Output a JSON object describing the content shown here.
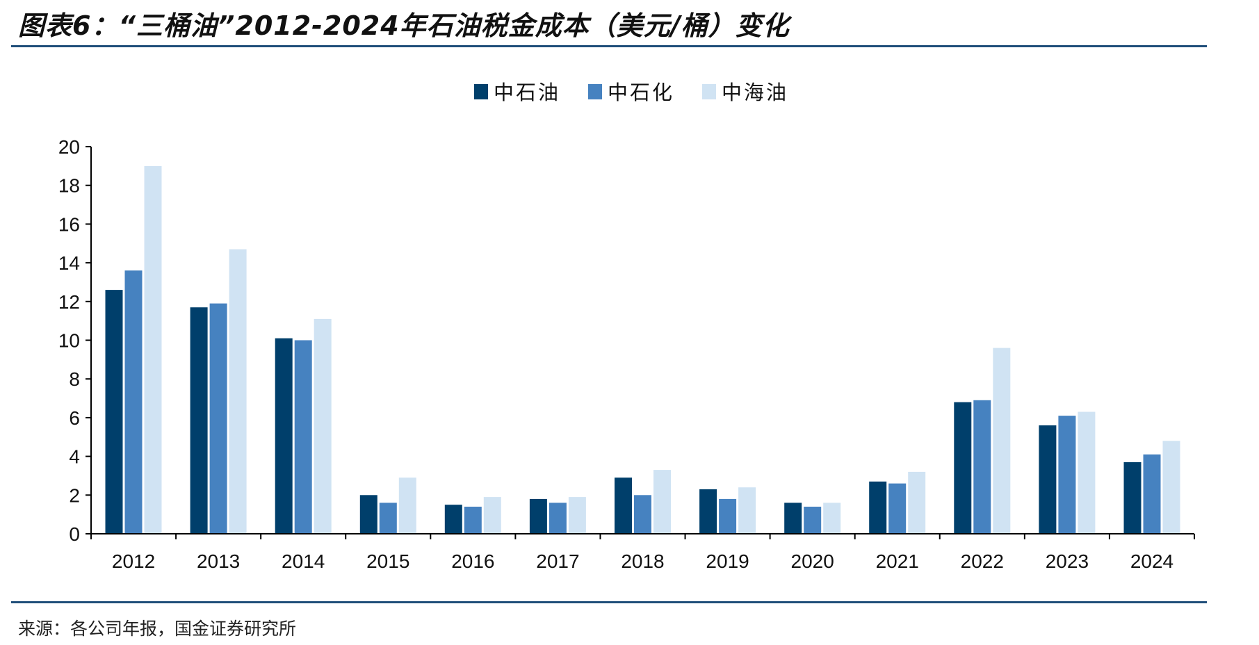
{
  "figure": {
    "title": "图表6：“三桶油”2012-2024年石油税金成本（美元/桶）变化",
    "source": "来源：各公司年报，国金证券研究所"
  },
  "chart_data": {
    "type": "bar",
    "title": "图表6：“三桶油”2012-2024年石油税金成本（美元/桶）变化",
    "xlabel": "",
    "ylabel": "",
    "ylim": [
      0,
      20
    ],
    "yticks": [
      0,
      2,
      4,
      6,
      8,
      10,
      12,
      14,
      16,
      18,
      20
    ],
    "grid": false,
    "legend_position": "top-center",
    "categories": [
      "2012",
      "2013",
      "2014",
      "2015",
      "2016",
      "2017",
      "2018",
      "2019",
      "2020",
      "2021",
      "2022",
      "2023",
      "2024"
    ],
    "series": [
      {
        "name": "中石油",
        "color": "#003f6b",
        "values": [
          12.6,
          11.7,
          10.1,
          2.0,
          1.5,
          1.8,
          2.9,
          2.3,
          1.6,
          2.7,
          6.8,
          5.6,
          3.7
        ]
      },
      {
        "name": "中石化",
        "color": "#4682c0",
        "values": [
          13.6,
          11.9,
          10.0,
          1.6,
          1.4,
          1.6,
          2.0,
          1.8,
          1.4,
          2.6,
          6.9,
          6.1,
          4.1
        ]
      },
      {
        "name": "中海油",
        "color": "#d0e3f3",
        "values": [
          19.0,
          14.7,
          11.1,
          2.9,
          1.9,
          1.9,
          3.3,
          2.4,
          1.6,
          3.2,
          9.6,
          6.3,
          4.8
        ]
      }
    ]
  }
}
